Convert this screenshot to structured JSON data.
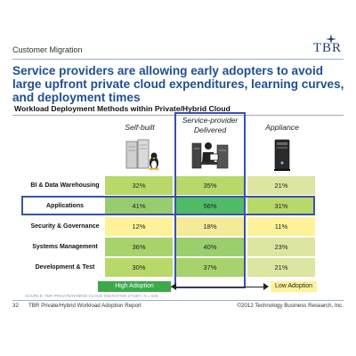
{
  "header": {
    "section_label": "Customer Migration",
    "logo_text": "TBR",
    "headline": "Service providers are allowing early adopters to avoid large upfront private cloud expenditures, learning curves, and deployment times"
  },
  "table": {
    "title": "Workload Deployment Methods within Private/Hybrid Cloud",
    "columns": [
      {
        "label": "Self-built",
        "icon": "server-linux-icon"
      },
      {
        "label": "Service-provider Delivered",
        "icon": "technician-workstation-icon"
      },
      {
        "label": "Appliance",
        "icon": "appliance-tower-icon"
      }
    ],
    "rows": [
      {
        "label": "BI & Data Warehousing",
        "values": [
          "32%",
          "35%",
          "21%"
        ],
        "colors": [
          "#b8d86a",
          "#b8d86a",
          "#dde6a0"
        ]
      },
      {
        "label": "Applications",
        "values": [
          "41%",
          "56%",
          "31%"
        ],
        "colors": [
          "#97cd6e",
          "#4fbb67",
          "#b8d86a"
        ]
      },
      {
        "label": "Security & Governance",
        "values": [
          "12%",
          "18%",
          "11%"
        ],
        "colors": [
          "#fdf29a",
          "#f4eb98",
          "#fdf29a"
        ]
      },
      {
        "label": "Systems Management",
        "values": [
          "36%",
          "40%",
          "23%"
        ],
        "colors": [
          "#a8d36c",
          "#9bcf6d",
          "#dde6a0"
        ]
      },
      {
        "label": "Development & Test",
        "values": [
          "30%",
          "37%",
          "21%"
        ],
        "colors": [
          "#b8d86a",
          "#a8d36c",
          "#dde6a0"
        ]
      }
    ],
    "highlight_color": "#3b52a8"
  },
  "legend": {
    "high_label": "High Adoption",
    "low_label": "Low Adoption",
    "high_color": "#3aaa4a",
    "low_color": "#fdf29a"
  },
  "source": "SOURCE: TBR PRIVATE/HYBRID CLOUD MIGRATION STUDY, N = 636",
  "footer": {
    "page_number": "32",
    "report_title": "TBR Private/Hybrid Workload Adoption Report",
    "copyright": "©2012 Technology Business Research, Inc."
  }
}
